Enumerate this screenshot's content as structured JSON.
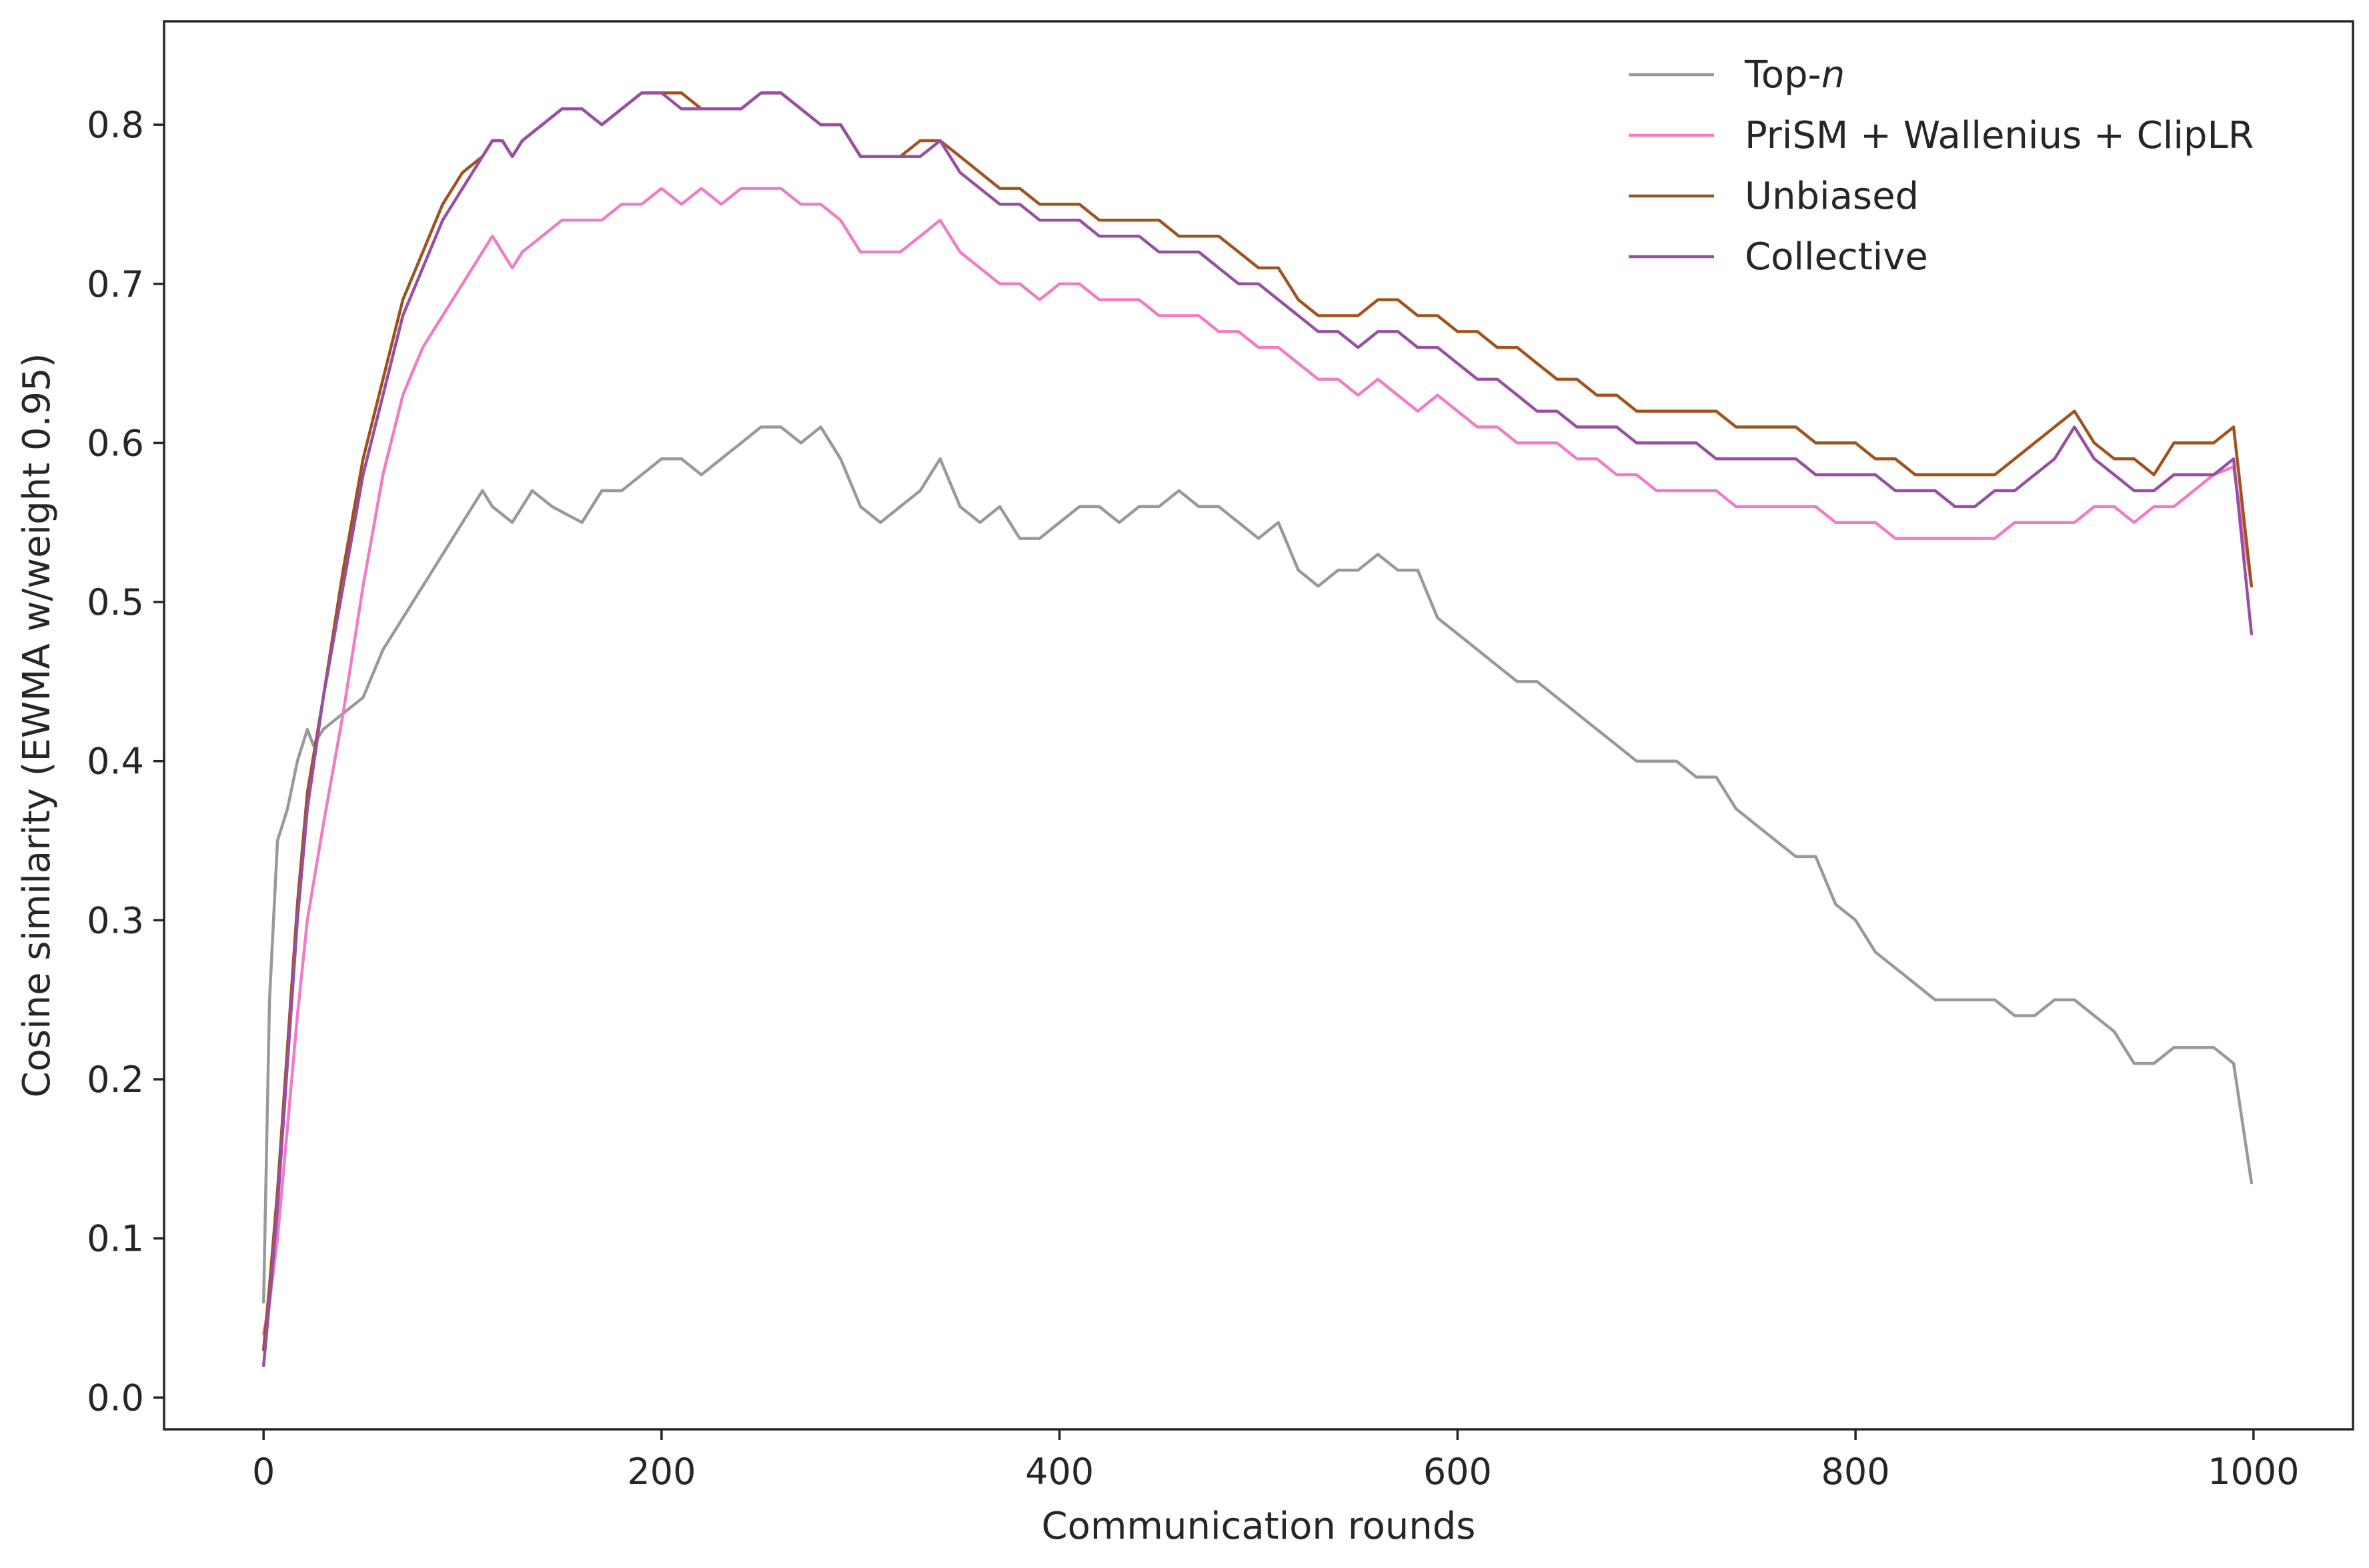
{
  "chart_data": {
    "type": "line",
    "xlabel": "Communication rounds",
    "ylabel": "Cosine similarity (EWMA w/weight 0.95)",
    "xlim": [
      -50,
      1050
    ],
    "ylim": [
      -0.02,
      0.865
    ],
    "xticks": [
      0,
      200,
      400,
      600,
      800,
      1000
    ],
    "xtick_labels": [
      "0",
      "200",
      "400",
      "600",
      "800",
      "1000"
    ],
    "yticks": [
      0.0,
      0.1,
      0.2,
      0.3,
      0.4,
      0.5,
      0.6,
      0.7,
      0.8
    ],
    "ytick_labels": [
      "0.0",
      "0.1",
      "0.2",
      "0.3",
      "0.4",
      "0.5",
      "0.6",
      "0.7",
      "0.8"
    ],
    "grid": false,
    "legend_position": "top-right",
    "series": [
      {
        "name": "Top-n",
        "name_main": "Top-",
        "name_italic": "n",
        "color": "#999999",
        "x": [
          0,
          3,
          7,
          12,
          17,
          22,
          25,
          30,
          40,
          50,
          60,
          70,
          80,
          90,
          100,
          110,
          115,
          125,
          135,
          145,
          160,
          170,
          180,
          190,
          200,
          210,
          220,
          230,
          240,
          250,
          260,
          270,
          280,
          290,
          300,
          310,
          320,
          330,
          340,
          350,
          360,
          370,
          380,
          390,
          400,
          410,
          420,
          430,
          440,
          450,
          460,
          470,
          480,
          490,
          500,
          510,
          520,
          530,
          540,
          550,
          560,
          570,
          580,
          590,
          600,
          610,
          620,
          630,
          640,
          650,
          660,
          670,
          680,
          690,
          700,
          710,
          720,
          730,
          740,
          750,
          760,
          770,
          780,
          790,
          800,
          810,
          820,
          830,
          840,
          850,
          860,
          870,
          880,
          890,
          900,
          910,
          920,
          930,
          940,
          950,
          960,
          970,
          980,
          990,
          999
        ],
        "y": [
          0.06,
          0.25,
          0.35,
          0.37,
          0.4,
          0.42,
          0.41,
          0.42,
          0.43,
          0.44,
          0.47,
          0.49,
          0.51,
          0.53,
          0.55,
          0.57,
          0.56,
          0.55,
          0.57,
          0.56,
          0.55,
          0.57,
          0.57,
          0.58,
          0.59,
          0.59,
          0.58,
          0.59,
          0.6,
          0.61,
          0.61,
          0.6,
          0.61,
          0.59,
          0.56,
          0.55,
          0.56,
          0.57,
          0.59,
          0.56,
          0.55,
          0.56,
          0.54,
          0.54,
          0.55,
          0.56,
          0.56,
          0.55,
          0.56,
          0.56,
          0.57,
          0.56,
          0.56,
          0.55,
          0.54,
          0.55,
          0.52,
          0.51,
          0.52,
          0.52,
          0.53,
          0.52,
          0.52,
          0.49,
          0.48,
          0.47,
          0.46,
          0.45,
          0.45,
          0.44,
          0.43,
          0.42,
          0.41,
          0.4,
          0.4,
          0.4,
          0.39,
          0.39,
          0.37,
          0.36,
          0.35,
          0.34,
          0.34,
          0.31,
          0.3,
          0.28,
          0.27,
          0.26,
          0.25,
          0.25,
          0.25,
          0.25,
          0.24,
          0.24,
          0.25,
          0.25,
          0.24,
          0.23,
          0.21,
          0.21,
          0.22,
          0.22,
          0.22,
          0.21,
          0.135
        ]
      },
      {
        "name": "PriSM + Wallenius + ClipLR",
        "color": "#f07cc5",
        "x": [
          0,
          3,
          7,
          12,
          17,
          22,
          30,
          40,
          50,
          60,
          70,
          80,
          90,
          100,
          110,
          115,
          120,
          125,
          130,
          140,
          150,
          160,
          170,
          180,
          190,
          200,
          210,
          220,
          230,
          240,
          250,
          260,
          270,
          280,
          290,
          300,
          310,
          320,
          330,
          340,
          350,
          360,
          370,
          380,
          390,
          400,
          410,
          420,
          430,
          440,
          450,
          460,
          470,
          480,
          490,
          500,
          510,
          520,
          530,
          540,
          550,
          560,
          570,
          580,
          590,
          600,
          610,
          620,
          630,
          640,
          650,
          660,
          670,
          680,
          690,
          700,
          710,
          720,
          730,
          740,
          750,
          760,
          770,
          780,
          790,
          800,
          810,
          820,
          830,
          840,
          850,
          860,
          870,
          880,
          890,
          900,
          910,
          920,
          930,
          940,
          950,
          960,
          970,
          980,
          990,
          999
        ],
        "y": [
          0.04,
          0.06,
          0.1,
          0.17,
          0.24,
          0.3,
          0.36,
          0.43,
          0.51,
          0.58,
          0.63,
          0.66,
          0.68,
          0.7,
          0.72,
          0.73,
          0.72,
          0.71,
          0.72,
          0.73,
          0.74,
          0.74,
          0.74,
          0.75,
          0.75,
          0.76,
          0.75,
          0.76,
          0.75,
          0.76,
          0.76,
          0.76,
          0.75,
          0.75,
          0.74,
          0.72,
          0.72,
          0.72,
          0.73,
          0.74,
          0.72,
          0.71,
          0.7,
          0.7,
          0.69,
          0.7,
          0.7,
          0.69,
          0.69,
          0.69,
          0.68,
          0.68,
          0.68,
          0.67,
          0.67,
          0.66,
          0.66,
          0.65,
          0.64,
          0.64,
          0.63,
          0.64,
          0.63,
          0.62,
          0.63,
          0.62,
          0.61,
          0.61,
          0.6,
          0.6,
          0.6,
          0.59,
          0.59,
          0.58,
          0.58,
          0.57,
          0.57,
          0.57,
          0.57,
          0.56,
          0.56,
          0.56,
          0.56,
          0.56,
          0.55,
          0.55,
          0.55,
          0.54,
          0.54,
          0.54,
          0.54,
          0.54,
          0.54,
          0.55,
          0.55,
          0.55,
          0.55,
          0.56,
          0.56,
          0.55,
          0.56,
          0.56,
          0.57,
          0.58,
          0.585,
          0.51
        ]
      },
      {
        "name": "Unbiased",
        "color": "#a0521d",
        "x": [
          0,
          3,
          7,
          12,
          17,
          22,
          30,
          40,
          50,
          60,
          70,
          80,
          90,
          100,
          110,
          115,
          120,
          125,
          130,
          140,
          150,
          160,
          170,
          180,
          190,
          200,
          210,
          220,
          230,
          240,
          250,
          260,
          270,
          280,
          290,
          300,
          310,
          320,
          330,
          340,
          350,
          360,
          370,
          380,
          390,
          400,
          410,
          420,
          430,
          440,
          450,
          460,
          470,
          480,
          490,
          500,
          510,
          520,
          530,
          540,
          550,
          560,
          570,
          580,
          590,
          600,
          610,
          620,
          630,
          640,
          650,
          660,
          670,
          680,
          690,
          700,
          710,
          720,
          730,
          740,
          750,
          760,
          770,
          780,
          790,
          800,
          810,
          820,
          830,
          840,
          850,
          860,
          870,
          880,
          890,
          900,
          910,
          920,
          930,
          940,
          950,
          960,
          970,
          980,
          990,
          999
        ],
        "y": [
          0.03,
          0.07,
          0.13,
          0.22,
          0.31,
          0.38,
          0.44,
          0.52,
          0.59,
          0.64,
          0.69,
          0.72,
          0.75,
          0.77,
          0.78,
          0.79,
          0.79,
          0.78,
          0.79,
          0.8,
          0.81,
          0.81,
          0.8,
          0.81,
          0.82,
          0.82,
          0.82,
          0.81,
          0.81,
          0.81,
          0.82,
          0.82,
          0.81,
          0.8,
          0.8,
          0.78,
          0.78,
          0.78,
          0.79,
          0.79,
          0.78,
          0.77,
          0.76,
          0.76,
          0.75,
          0.75,
          0.75,
          0.74,
          0.74,
          0.74,
          0.74,
          0.73,
          0.73,
          0.73,
          0.72,
          0.71,
          0.71,
          0.69,
          0.68,
          0.68,
          0.68,
          0.69,
          0.69,
          0.68,
          0.68,
          0.67,
          0.67,
          0.66,
          0.66,
          0.65,
          0.64,
          0.64,
          0.63,
          0.63,
          0.62,
          0.62,
          0.62,
          0.62,
          0.62,
          0.61,
          0.61,
          0.61,
          0.61,
          0.6,
          0.6,
          0.6,
          0.59,
          0.59,
          0.58,
          0.58,
          0.58,
          0.58,
          0.58,
          0.59,
          0.6,
          0.61,
          0.62,
          0.6,
          0.59,
          0.59,
          0.58,
          0.6,
          0.6,
          0.6,
          0.61,
          0.51
        ]
      },
      {
        "name": "Collective",
        "color": "#984ea3",
        "x": [
          0,
          3,
          7,
          12,
          17,
          22,
          30,
          40,
          50,
          60,
          70,
          80,
          90,
          100,
          110,
          115,
          120,
          125,
          130,
          140,
          150,
          160,
          170,
          180,
          190,
          200,
          210,
          220,
          230,
          240,
          250,
          260,
          270,
          280,
          290,
          300,
          310,
          320,
          330,
          340,
          350,
          360,
          370,
          380,
          390,
          400,
          410,
          420,
          430,
          440,
          450,
          460,
          470,
          480,
          490,
          500,
          510,
          520,
          530,
          540,
          550,
          560,
          570,
          580,
          590,
          600,
          610,
          620,
          630,
          640,
          650,
          660,
          670,
          680,
          690,
          700,
          710,
          720,
          730,
          740,
          750,
          760,
          770,
          780,
          790,
          800,
          810,
          820,
          830,
          840,
          850,
          860,
          870,
          880,
          890,
          900,
          910,
          920,
          930,
          940,
          950,
          960,
          970,
          980,
          990,
          999
        ],
        "y": [
          0.02,
          0.06,
          0.12,
          0.21,
          0.3,
          0.37,
          0.44,
          0.51,
          0.58,
          0.63,
          0.68,
          0.71,
          0.74,
          0.76,
          0.78,
          0.79,
          0.79,
          0.78,
          0.79,
          0.8,
          0.81,
          0.81,
          0.8,
          0.81,
          0.82,
          0.82,
          0.81,
          0.81,
          0.81,
          0.81,
          0.82,
          0.82,
          0.81,
          0.8,
          0.8,
          0.78,
          0.78,
          0.78,
          0.78,
          0.79,
          0.77,
          0.76,
          0.75,
          0.75,
          0.74,
          0.74,
          0.74,
          0.73,
          0.73,
          0.73,
          0.72,
          0.72,
          0.72,
          0.71,
          0.7,
          0.7,
          0.69,
          0.68,
          0.67,
          0.67,
          0.66,
          0.67,
          0.67,
          0.66,
          0.66,
          0.65,
          0.64,
          0.64,
          0.63,
          0.62,
          0.62,
          0.61,
          0.61,
          0.61,
          0.6,
          0.6,
          0.6,
          0.6,
          0.59,
          0.59,
          0.59,
          0.59,
          0.59,
          0.58,
          0.58,
          0.58,
          0.58,
          0.57,
          0.57,
          0.57,
          0.56,
          0.56,
          0.57,
          0.57,
          0.58,
          0.59,
          0.61,
          0.59,
          0.58,
          0.57,
          0.57,
          0.58,
          0.58,
          0.58,
          0.59,
          0.48
        ]
      }
    ]
  }
}
